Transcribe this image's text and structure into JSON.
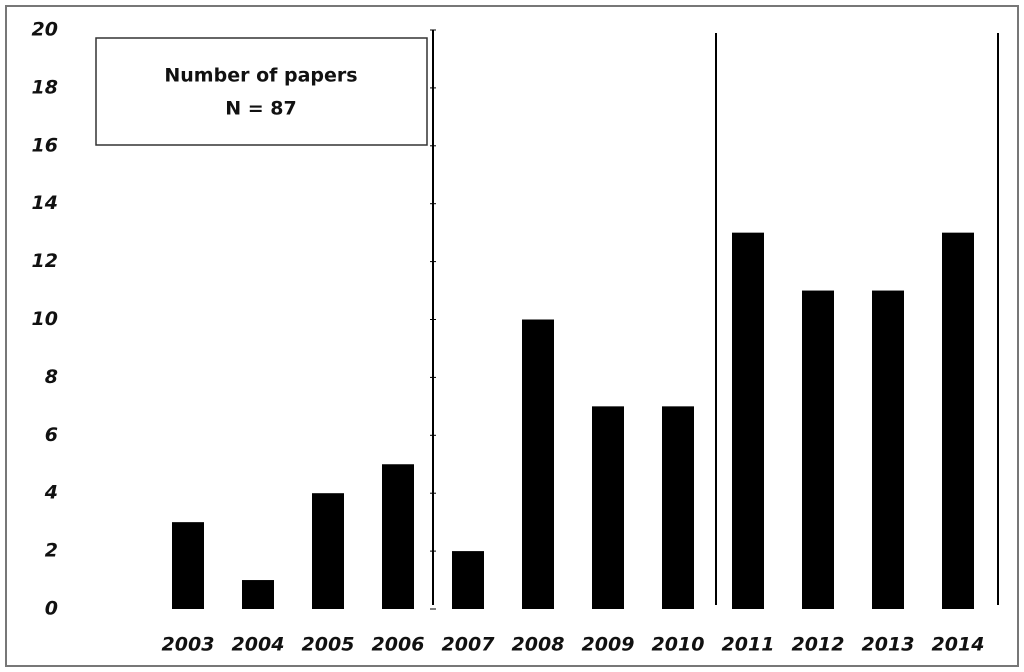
{
  "chart_data": {
    "type": "bar",
    "annotations": [
      "Number of papers",
      "N = 87"
    ],
    "categories": [
      "2003",
      "2004",
      "2005",
      "2006",
      "2007",
      "2008",
      "2009",
      "2010",
      "2011",
      "2012",
      "2013",
      "2014"
    ],
    "values": [
      3,
      1,
      4,
      5,
      2,
      10,
      7,
      7,
      13,
      11,
      11,
      13
    ],
    "color": "#000000",
    "ylim": [
      0,
      20
    ],
    "yticks": [
      0,
      2,
      4,
      6,
      8,
      10,
      12,
      14,
      16,
      18,
      20
    ],
    "grid": false
  }
}
